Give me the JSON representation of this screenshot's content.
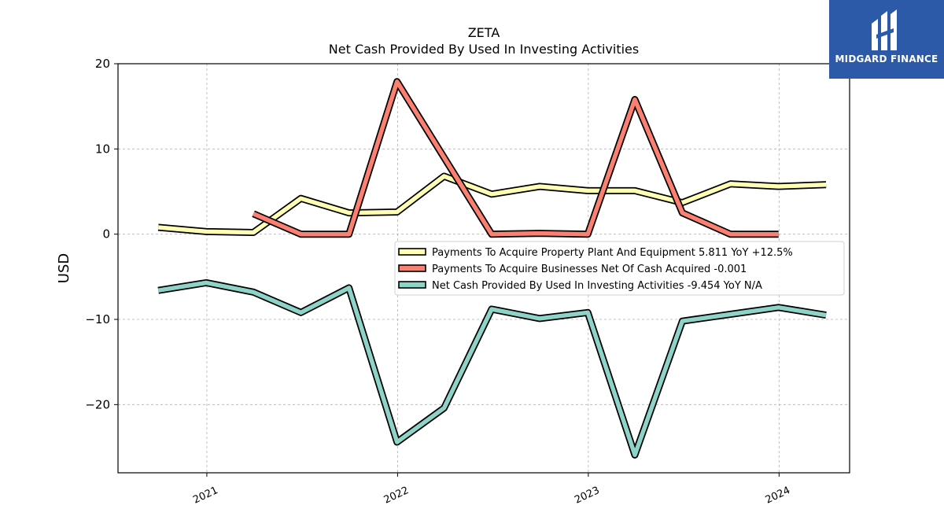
{
  "brand": {
    "name": "MIDGARD FINANCE",
    "bg_color": "#2c5aa8"
  },
  "chart_data": {
    "type": "line",
    "title": "ZETA",
    "subtitle": "Net Cash Provided By Used In Investing Activities",
    "xlabel": "",
    "ylabel": "USD",
    "ylim": [
      -28,
      20
    ],
    "yticks": [
      20,
      10,
      0,
      -10,
      -20
    ],
    "ytick_labels": [
      "20",
      "10",
      "0",
      "−10",
      "−20"
    ],
    "xlim": [
      "2020-07-15",
      "2024-05-15"
    ],
    "xticks": [
      "2021-01-01",
      "2022-01-01",
      "2023-01-01",
      "2024-01-01"
    ],
    "xtick_labels": [
      "2021",
      "2022",
      "2023",
      "2024"
    ],
    "grid": true,
    "legend_position": "center-right",
    "series": [
      {
        "name": "Payments To Acquire Property Plant And Equipment  5.811 YoY +12.5%",
        "color": "#ffffb3",
        "points": [
          [
            "2020-09-30",
            0.8
          ],
          [
            "2020-12-31",
            0.3
          ],
          [
            "2021-03-31",
            0.2
          ],
          [
            "2021-06-30",
            4.2
          ],
          [
            "2021-09-30",
            2.5
          ],
          [
            "2021-12-31",
            2.6
          ],
          [
            "2022-03-31",
            6.8
          ],
          [
            "2022-06-30",
            4.7
          ],
          [
            "2022-09-30",
            5.6
          ],
          [
            "2022-12-31",
            5.1
          ],
          [
            "2023-03-31",
            5.1
          ],
          [
            "2023-06-30",
            3.7
          ],
          [
            "2023-09-30",
            5.9
          ],
          [
            "2023-12-31",
            5.6
          ],
          [
            "2024-03-31",
            5.8
          ]
        ]
      },
      {
        "name": "Payments To Acquire Businesses Net Of Cash Acquired  -0.001",
        "color": "#fb8072",
        "points": [
          [
            "2021-03-31",
            2.4
          ],
          [
            "2021-06-30",
            0.0
          ],
          [
            "2021-09-30",
            0.0
          ],
          [
            "2021-12-31",
            17.9
          ],
          [
            "2022-03-31",
            9.0
          ],
          [
            "2022-06-30",
            0.0
          ],
          [
            "2022-09-30",
            0.1
          ],
          [
            "2022-12-31",
            0.0
          ],
          [
            "2023-03-31",
            15.8
          ],
          [
            "2023-06-30",
            2.5
          ],
          [
            "2023-09-30",
            0.0
          ],
          [
            "2023-12-31",
            0.0
          ]
        ]
      },
      {
        "name": "Net Cash Provided By Used In Investing Activities  -9.454 YoY N/A",
        "color": "#8dd3c7",
        "points": [
          [
            "2020-09-30",
            -6.6
          ],
          [
            "2020-12-31",
            -5.7
          ],
          [
            "2021-03-31",
            -6.8
          ],
          [
            "2021-06-30",
            -9.2
          ],
          [
            "2021-09-30",
            -6.3
          ],
          [
            "2021-12-31",
            -24.4
          ],
          [
            "2022-03-31",
            -20.4
          ],
          [
            "2022-06-30",
            -8.8
          ],
          [
            "2022-09-30",
            -9.9
          ],
          [
            "2022-12-31",
            -9.2
          ],
          [
            "2023-03-31",
            -25.9
          ],
          [
            "2023-06-30",
            -10.2
          ],
          [
            "2023-09-30",
            -9.4
          ],
          [
            "2023-12-31",
            -8.6
          ],
          [
            "2024-03-31",
            -9.5
          ]
        ]
      }
    ]
  }
}
